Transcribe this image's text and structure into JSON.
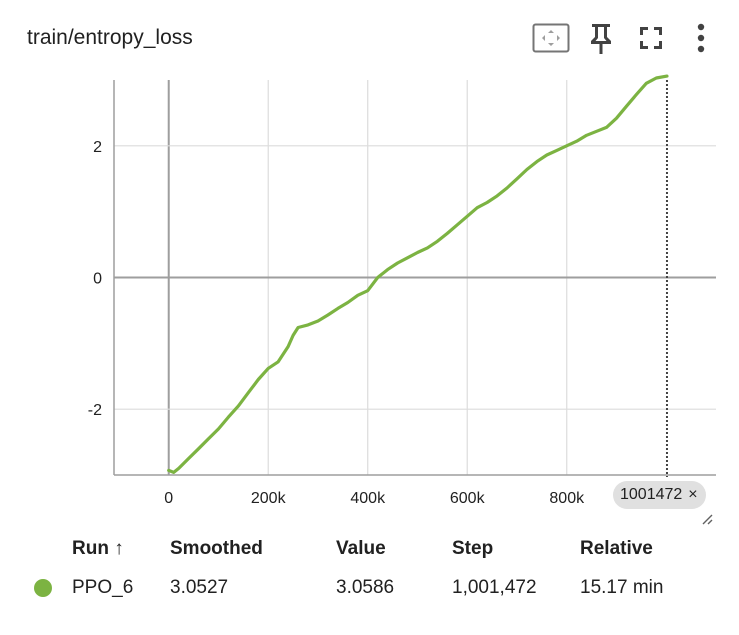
{
  "card": {
    "title": "train/entropy_loss"
  },
  "toolbar": {
    "icons": [
      "fit-domain-icon",
      "pin-icon",
      "fullscreen-icon",
      "more-vert-icon"
    ]
  },
  "chart_data": {
    "type": "line",
    "title": "train/entropy_loss",
    "xlabel": "",
    "ylabel": "",
    "xlim": [
      -110000,
      1100000
    ],
    "ylim": [
      -3.0,
      3.0
    ],
    "x_ticks": [
      0,
      200000,
      400000,
      600000,
      800000
    ],
    "x_tick_labels": [
      "0",
      "200k",
      "400k",
      "600k",
      "800k"
    ],
    "y_ticks": [
      -2,
      0,
      2
    ],
    "y_tick_labels": [
      "-2",
      "0",
      "2"
    ],
    "grid": true,
    "hover_step": 1001472,
    "series": [
      {
        "name": "PPO_6",
        "color": "#7cb342",
        "x": [
          0,
          10000,
          20000,
          40000,
          60000,
          80000,
          100000,
          120000,
          140000,
          160000,
          180000,
          200000,
          220000,
          240000,
          250000,
          260000,
          280000,
          300000,
          320000,
          340000,
          360000,
          380000,
          400000,
          420000,
          440000,
          460000,
          480000,
          500000,
          520000,
          540000,
          560000,
          580000,
          600000,
          620000,
          640000,
          660000,
          680000,
          700000,
          720000,
          740000,
          760000,
          780000,
          800000,
          820000,
          840000,
          860000,
          880000,
          900000,
          920000,
          940000,
          960000,
          980000,
          1001472
        ],
        "y": [
          -2.93,
          -2.96,
          -2.9,
          -2.75,
          -2.6,
          -2.45,
          -2.3,
          -2.12,
          -1.95,
          -1.75,
          -1.55,
          -1.38,
          -1.28,
          -1.05,
          -0.88,
          -0.76,
          -0.72,
          -0.66,
          -0.57,
          -0.47,
          -0.38,
          -0.27,
          -0.2,
          0.0,
          0.12,
          0.22,
          0.3,
          0.38,
          0.45,
          0.55,
          0.67,
          0.8,
          0.93,
          1.06,
          1.14,
          1.24,
          1.36,
          1.5,
          1.64,
          1.76,
          1.86,
          1.93,
          2.0,
          2.07,
          2.16,
          2.22,
          2.28,
          2.42,
          2.6,
          2.78,
          2.95,
          3.03,
          3.06
        ]
      }
    ]
  },
  "step_badge": {
    "value": "1001472",
    "close": "×"
  },
  "runs_table": {
    "headers": {
      "run": "Run ↑",
      "smoothed": "Smoothed",
      "value": "Value",
      "step": "Step",
      "relative": "Relative"
    },
    "rows": [
      {
        "color": "#7cb342",
        "run": "PPO_6",
        "smoothed": "3.0527",
        "value": "3.0586",
        "step": "1,001,472",
        "relative": "15.17 min"
      }
    ]
  }
}
